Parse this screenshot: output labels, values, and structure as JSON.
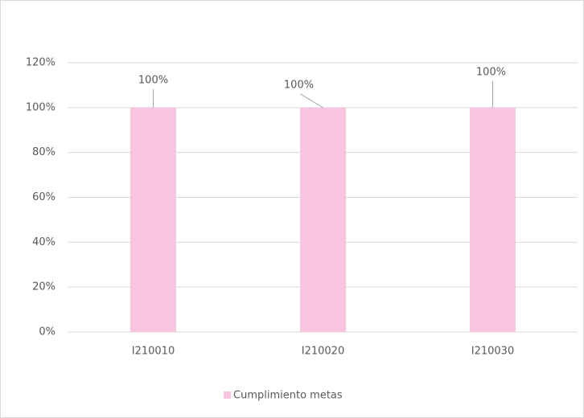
{
  "chart_data": {
    "type": "bar",
    "categories": [
      "I210010",
      "I210020",
      "I210030"
    ],
    "series": [
      {
        "name": "Cumplimiento metas",
        "color": "#f9c4e0",
        "values": [
          100,
          100,
          100
        ],
        "value_labels": [
          "100%",
          "100%",
          "100%"
        ]
      }
    ],
    "ylim": [
      0,
      120
    ],
    "yticks": [
      {
        "value": 0,
        "label": "0%"
      },
      {
        "value": 20,
        "label": "20%"
      },
      {
        "value": 40,
        "label": "40%"
      },
      {
        "value": 60,
        "label": "60%"
      },
      {
        "value": 80,
        "label": "80%"
      },
      {
        "value": 100,
        "label": "100%"
      },
      {
        "value": 120,
        "label": "120%"
      }
    ],
    "grid": true,
    "legend": "bottom"
  }
}
